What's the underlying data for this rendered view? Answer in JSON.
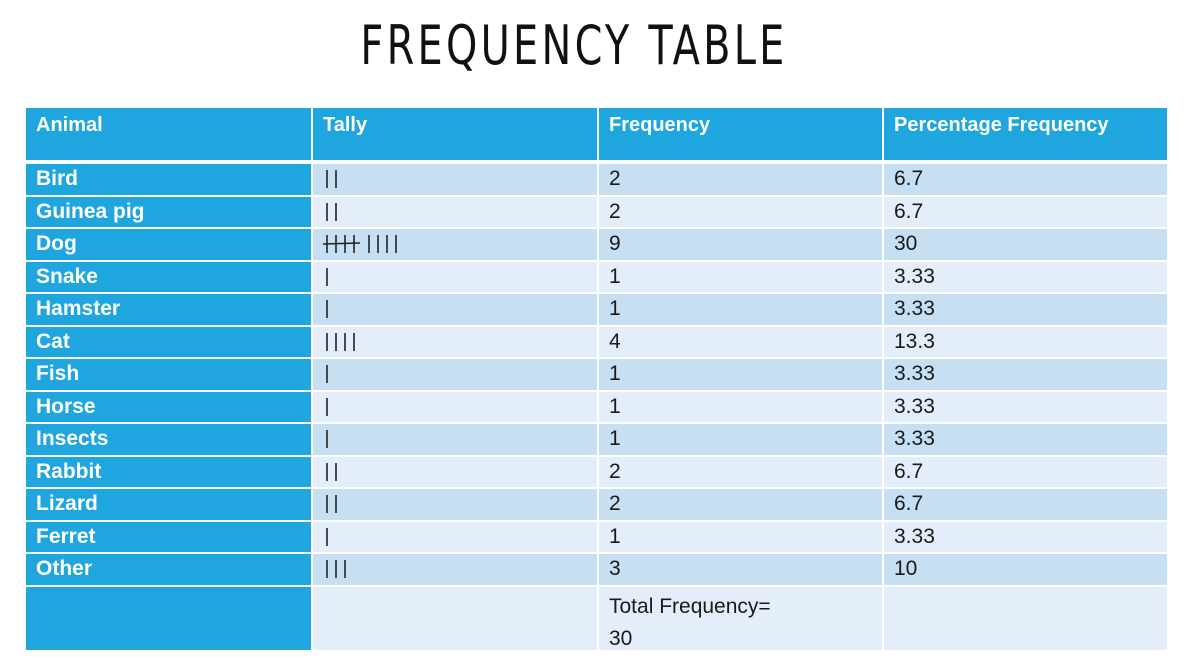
{
  "title": "FREQUENCY TABLE",
  "headers": [
    "Animal",
    "Tally",
    "Frequency",
    "Percentage Frequency"
  ],
  "rows": [
    {
      "animal": "Bird",
      "tally": 2,
      "frequency": "2",
      "percent": "6.7"
    },
    {
      "animal": "Guinea pig",
      "tally": 2,
      "frequency": "2",
      "percent": "6.7"
    },
    {
      "animal": "Dog",
      "tally": 9,
      "frequency": "9",
      "percent": "30"
    },
    {
      "animal": "Snake",
      "tally": 1,
      "frequency": "1",
      "percent": "3.33"
    },
    {
      "animal": "Hamster",
      "tally": 1,
      "frequency": "1",
      "percent": "3.33"
    },
    {
      "animal": "Cat",
      "tally": 4,
      "frequency": "4",
      "percent": "13.3"
    },
    {
      "animal": "Fish",
      "tally": 1,
      "frequency": "1",
      "percent": "3.33"
    },
    {
      "animal": "Horse",
      "tally": 1,
      "frequency": "1",
      "percent": "3.33"
    },
    {
      "animal": "Insects",
      "tally": 1,
      "frequency": "1",
      "percent": "3.33"
    },
    {
      "animal": "Rabbit",
      "tally": 2,
      "frequency": "2",
      "percent": "6.7"
    },
    {
      "animal": "Lizard",
      "tally": 2,
      "frequency": "2",
      "percent": "6.7"
    },
    {
      "animal": "Ferret",
      "tally": 1,
      "frequency": "1",
      "percent": "3.33"
    },
    {
      "animal": "Other",
      "tally": 3,
      "frequency": "3",
      "percent": "10"
    }
  ],
  "total": {
    "label": "Total Frequency=",
    "value": "30"
  }
}
